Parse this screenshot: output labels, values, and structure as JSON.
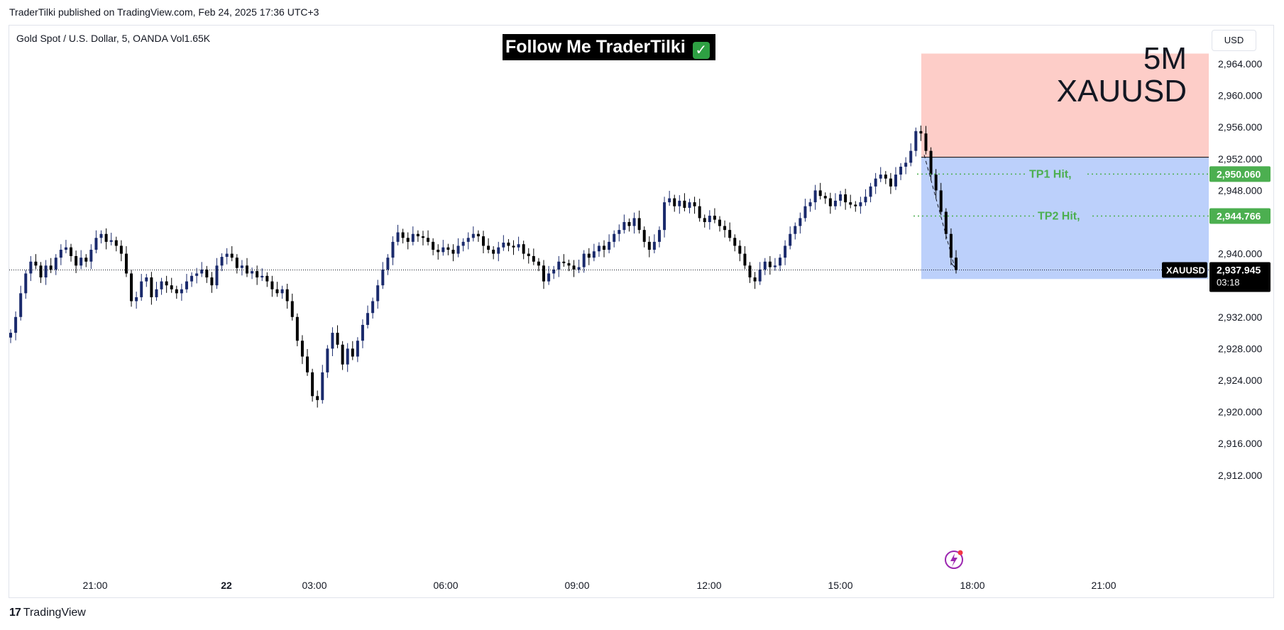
{
  "header": {
    "publish_text": "TraderTilki published on TradingView.com, Feb 24, 2025 17:36 UTC+3"
  },
  "symbol_line": "Gold Spot / U.S. Dollar, 5, OANDA  Vol1.65K",
  "currency_button": "USD",
  "follow_banner": {
    "text": "Follow Me TraderTilki",
    "icon": "check-icon"
  },
  "watermark": {
    "line1": "5M",
    "line2": "XAUUSD"
  },
  "footer": {
    "brand": "TradingView",
    "icon": "tradingview-logo-icon"
  },
  "colors": {
    "up_candle": "#1a2a6c",
    "down_candle": "#000000",
    "stop_zone": "#fdcdc8",
    "target_zone": "#bcd0fb",
    "tp_green": "#4caf50",
    "dark_label": "#000000"
  },
  "chart_data": {
    "type": "candlestick",
    "instrument": "XAUUSD",
    "timeframe": "5",
    "ylim": [
      2908,
      2968
    ],
    "y_ticks": [
      2964,
      2960,
      2956,
      2952,
      2948,
      2940,
      2932,
      2928,
      2924,
      2920,
      2916,
      2912
    ],
    "y_tick_labels": [
      "2,964.000",
      "2,960.000",
      "2,956.000",
      "2,952.000",
      "2,948.000",
      "2,940.000",
      "2,932.000",
      "2,928.000",
      "2,924.000",
      "2,920.000",
      "2,916.000",
      "2,912.000"
    ],
    "x_ticks": [
      "21:00",
      "22",
      "03:00",
      "06:00",
      "09:00",
      "12:00",
      "15:00",
      "18:00",
      "21:00"
    ],
    "current_price": {
      "symbol": "XAUUSD",
      "value": 2937.945,
      "label": "2,937.945",
      "countdown": "03:18"
    },
    "position": {
      "entry": 2952.2,
      "stop": 2965.3,
      "target": 2936.8
    },
    "take_profits": [
      {
        "name": "TP1 Hit,",
        "value": 2950.06,
        "label": "2,950.060"
      },
      {
        "name": "TP2 Hit,",
        "value": 2944.766,
        "label": "2,944.766"
      }
    ],
    "series": [
      {
        "name": "close",
        "values": [
          2930,
          2932,
          2935,
          2937.5,
          2939,
          2938.5,
          2937,
          2938.5,
          2938,
          2939.5,
          2940.5,
          2940.8,
          2939.7,
          2938.5,
          2939.5,
          2939,
          2940.5,
          2942,
          2942.5,
          2941.5,
          2941.7,
          2941,
          2940,
          2937.5,
          2934,
          2934.5,
          2936.5,
          2937,
          2934.5,
          2935.5,
          2936.5,
          2936,
          2935.5,
          2935,
          2935.5,
          2936.5,
          2937.2,
          2937.5,
          2938,
          2937,
          2936,
          2938.5,
          2939.6,
          2940,
          2939.5,
          2938.2,
          2938.5,
          2937.5,
          2937.8,
          2937,
          2937.2,
          2936.5,
          2935.5,
          2935,
          2935.5,
          2934,
          2932,
          2929,
          2927,
          2925,
          2922,
          2921.5,
          2925,
          2928,
          2930,
          2928.5,
          2926,
          2928,
          2927,
          2929,
          2931,
          2932.5,
          2934,
          2936,
          2938,
          2939.5,
          2941.5,
          2942.7,
          2942,
          2941.5,
          2942.5,
          2942.2,
          2942,
          2941.5,
          2940.5,
          2940.2,
          2940.8,
          2940.5,
          2940,
          2941,
          2941.5,
          2942,
          2942.5,
          2942.2,
          2941,
          2940.5,
          2940,
          2940.8,
          2941.4,
          2941,
          2940.8,
          2941.2,
          2940,
          2939.7,
          2939,
          2938.5,
          2936.5,
          2937.5,
          2938,
          2939,
          2938.8,
          2938.5,
          2938,
          2938.3,
          2940,
          2939.5,
          2940.3,
          2941,
          2940.5,
          2941.5,
          2942.5,
          2943,
          2944,
          2943.5,
          2944.5,
          2943,
          2941.5,
          2940.5,
          2941.5,
          2943,
          2946.5,
          2947,
          2946,
          2946.7,
          2945.8,
          2946.5,
          2946,
          2944.5,
          2944,
          2944.8,
          2944.3,
          2943.5,
          2943,
          2942,
          2941,
          2940,
          2938.5,
          2937,
          2936.5,
          2938,
          2939,
          2938.3,
          2938.5,
          2939.5,
          2941,
          2942.5,
          2943.5,
          2944.5,
          2946,
          2946.5,
          2948,
          2947.3,
          2947,
          2946,
          2946.7,
          2947.5,
          2946.5,
          2946.2,
          2946,
          2946.5,
          2947.2,
          2948.5,
          2949.5,
          2950,
          2949.5,
          2948.5,
          2950,
          2951,
          2951.5,
          2953,
          2955.5,
          2955.2,
          2953,
          2950,
          2948,
          2945.3,
          2942.5,
          2939.5,
          2937.945
        ]
      }
    ]
  }
}
